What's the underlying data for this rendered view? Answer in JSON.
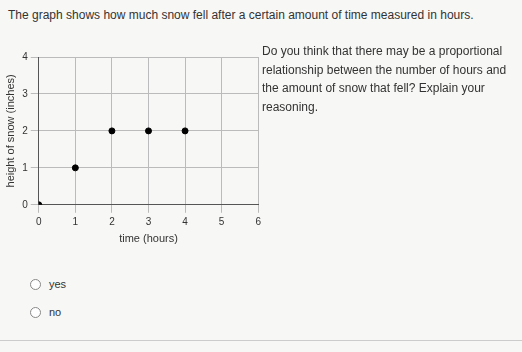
{
  "header": {
    "text": "The graph shows how much snow fell after a certain amount of time measured in hours."
  },
  "question": "Do you think that there may be a proportional relationship between the number of hours and the amount of snow that fell? Explain your reasoning.",
  "options": [
    "yes",
    "no"
  ],
  "chart_data": {
    "type": "scatter",
    "x_label": "time (hours)",
    "y_label": "height of snow (inches)",
    "x": [
      0,
      1,
      2,
      3,
      4
    ],
    "values": [
      0,
      1,
      2,
      2,
      2
    ],
    "color": "#000000",
    "xlim": [
      0,
      6
    ],
    "xticks": [
      0,
      1,
      2,
      3,
      4,
      5,
      6
    ],
    "ylim": [
      0,
      4
    ],
    "yticks": [
      0,
      1,
      2,
      3,
      4
    ],
    "grid": true
  }
}
